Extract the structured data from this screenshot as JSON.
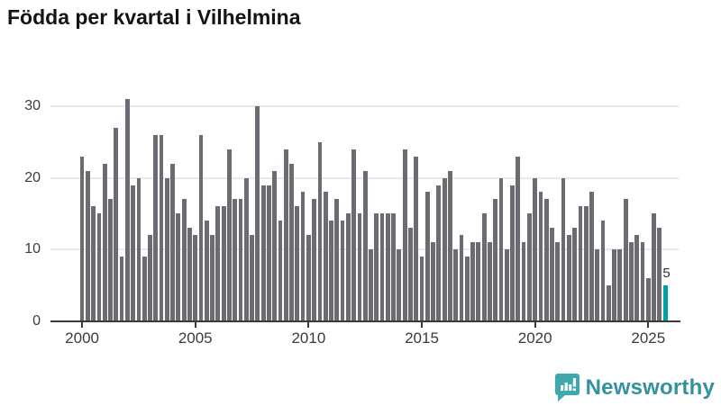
{
  "title": "Födda per kvartal i Vilhelmina",
  "chart_data": {
    "type": "bar",
    "title": "Födda per kvartal i Vilhelmina",
    "xlabel": "",
    "ylabel": "",
    "x_unit": "quarter",
    "start_year": 2000,
    "end_year": 2025,
    "x_tick_labels": [
      "2000",
      "2005",
      "2010",
      "2015",
      "2020",
      "2025"
    ],
    "y_tick_labels": [
      "0",
      "10",
      "20",
      "30"
    ],
    "y_ticks": [
      0,
      10,
      20,
      30
    ],
    "ylim": [
      0,
      31.5
    ],
    "grid": "horizontal",
    "legend": "none",
    "bar_color": "#6b6b72",
    "series": [
      {
        "name": "Födda per kvartal",
        "values": [
          23,
          21,
          16,
          15,
          22,
          17,
          27,
          9,
          31,
          19,
          20,
          9,
          12,
          26,
          26,
          20,
          22,
          15,
          17,
          13,
          12,
          26,
          14,
          12,
          16,
          16,
          24,
          17,
          17,
          20,
          12,
          30,
          19,
          19,
          21,
          14,
          24,
          22,
          16,
          18,
          12,
          17,
          25,
          18,
          14,
          17,
          14,
          15,
          24,
          15,
          21,
          10,
          15,
          15,
          15,
          15,
          10,
          24,
          13,
          23,
          9,
          18,
          11,
          19,
          20,
          21,
          10,
          12,
          9,
          11,
          11,
          15,
          11,
          17,
          20,
          10,
          19,
          23,
          11,
          15,
          20,
          18,
          17,
          13,
          11,
          20,
          12,
          13,
          16,
          16,
          18,
          10,
          14,
          5,
          10,
          10,
          17,
          11,
          12,
          11,
          6,
          15,
          13,
          5
        ]
      }
    ],
    "highlight": {
      "index": 103,
      "quarter": "2025 Q4",
      "label": "5",
      "value": 5,
      "color": "#00a1a2"
    }
  },
  "logo": {
    "text": "Newsworthy",
    "icon": "newsworthy-speech-bubble-bar-chart-icon",
    "icon_color": "#3fa8ac",
    "text_color": "#35919e"
  }
}
